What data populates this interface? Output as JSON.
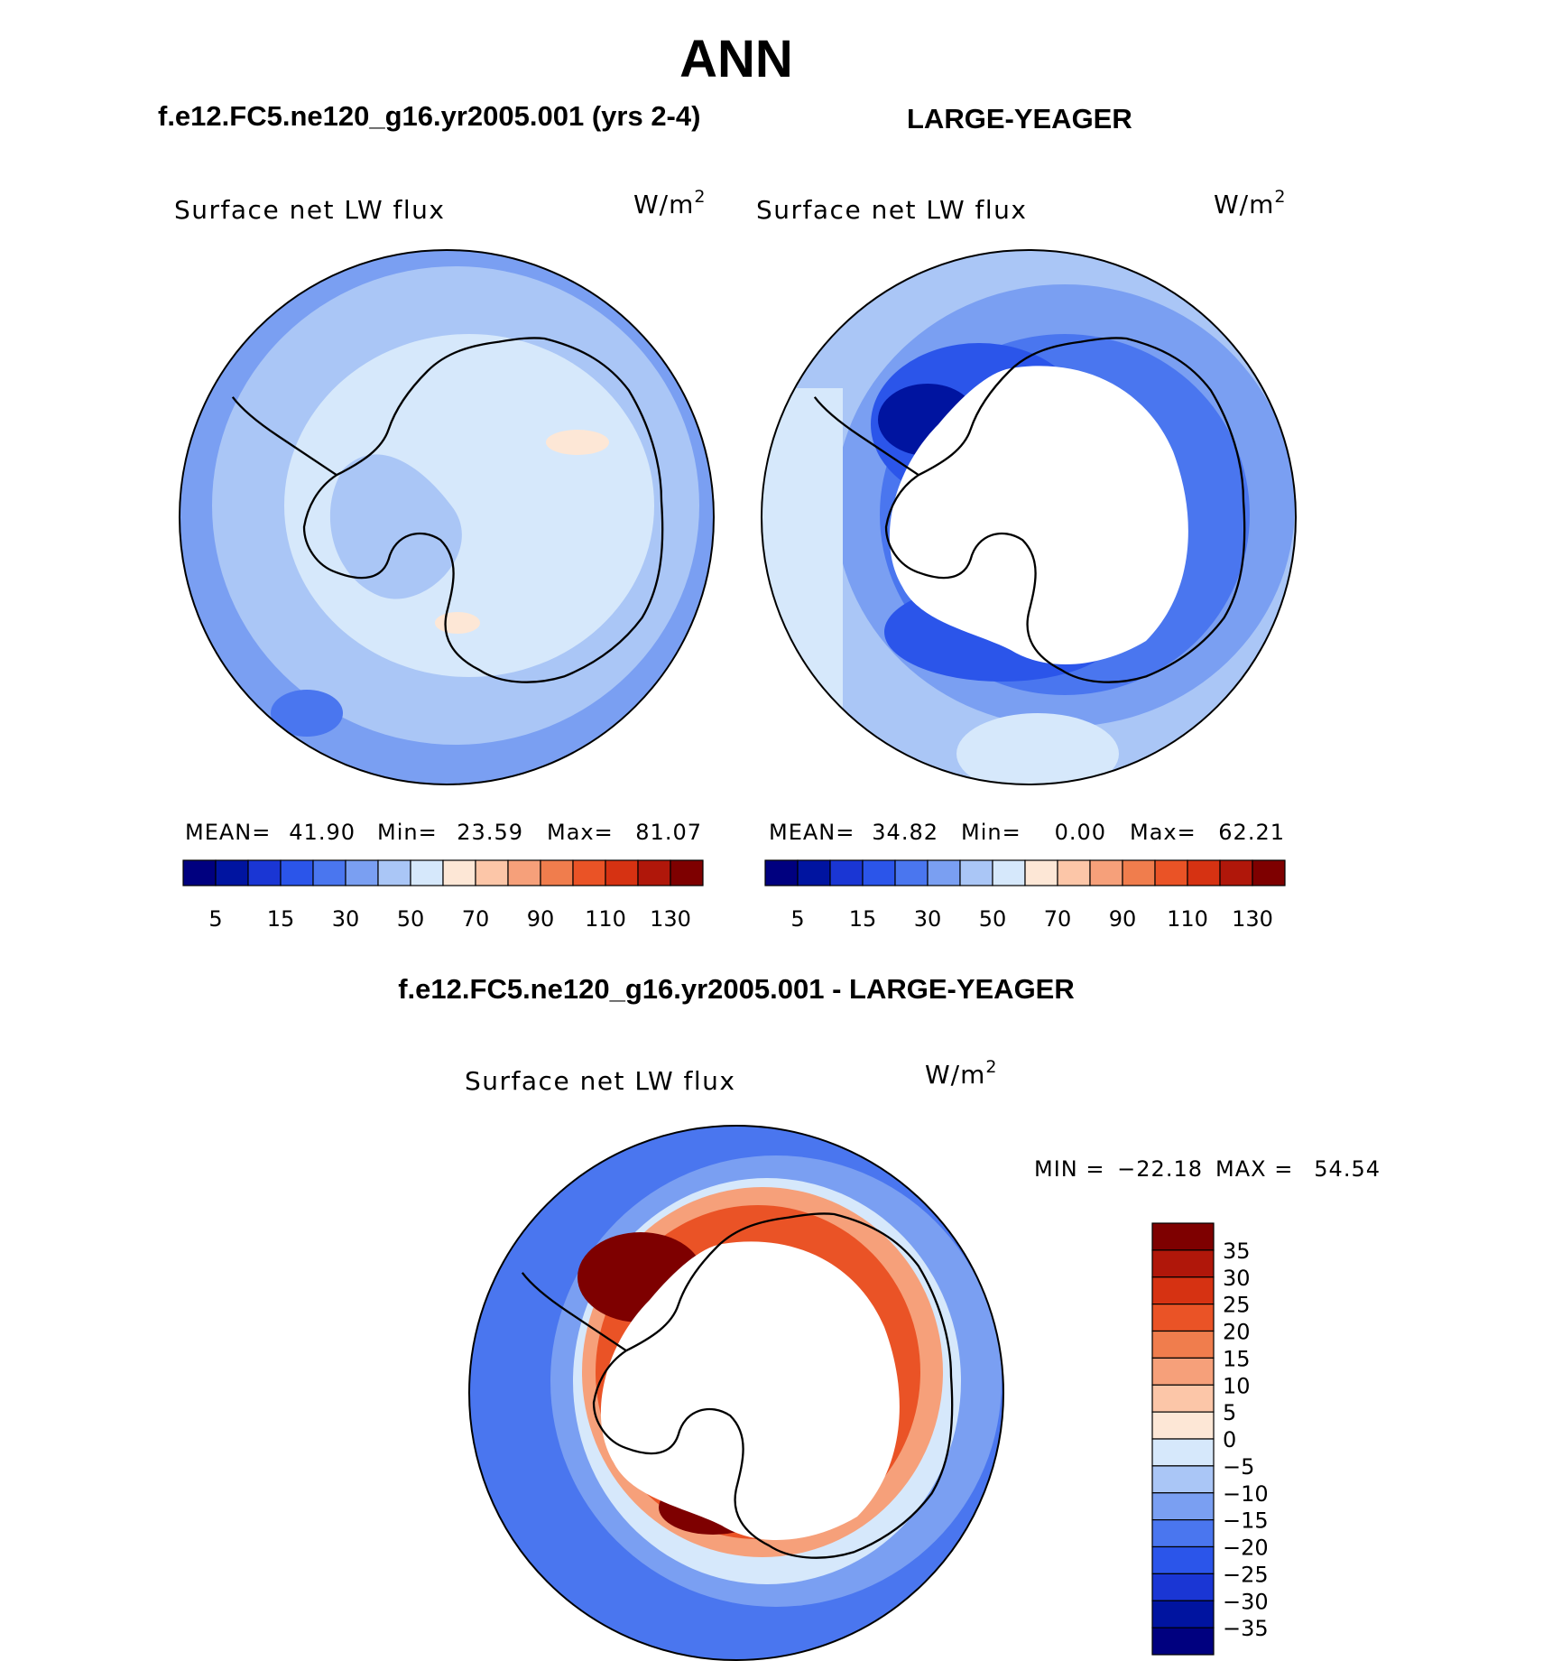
{
  "page": {
    "title": "ANN",
    "left_case": "f.e12.FC5.ne120_g16.yr2005.001 (yrs 2-4)",
    "right_case": "LARGE-YEAGER",
    "diff_title": "f.e12.FC5.ne120_g16.yr2005.001 - LARGE-YEAGER"
  },
  "panels": {
    "model": {
      "variable": "Surface net LW flux",
      "units_base": "W/m",
      "units_exp": "2",
      "stats": {
        "mean_label": "MEAN=",
        "mean": "41.90",
        "min_label": "Min=",
        "min": "23.59",
        "max_label": "Max=",
        "max": "81.07"
      }
    },
    "obs": {
      "variable": "Surface net LW flux",
      "units_base": "W/m",
      "units_exp": "2",
      "stats": {
        "mean_label": "MEAN=",
        "mean": "34.82",
        "min_label": "Min=",
        "min": "0.00",
        "max_label": "Max=",
        "max": "62.21"
      }
    },
    "diff": {
      "variable": "Surface net LW flux",
      "units_base": "W/m",
      "units_exp": "2",
      "stats": {
        "min_label": "MIN =",
        "min": "−22.18",
        "max_label": "MAX =",
        "max": "54.54"
      }
    }
  },
  "colorbars": {
    "abs": {
      "colors": [
        "#00007f",
        "#0014a0",
        "#1a36d4",
        "#2b55ea",
        "#4a76ef",
        "#7a9ff2",
        "#aac6f6",
        "#d6e8fb",
        "#fde7d6",
        "#fcc6a8",
        "#f6a07a",
        "#f07d4d",
        "#ea5326",
        "#d63212",
        "#b0170a",
        "#7e0000"
      ],
      "labels": [
        "5",
        "15",
        "30",
        "50",
        "70",
        "90",
        "110",
        "130"
      ]
    },
    "diff": {
      "colors": [
        "#7e0000",
        "#b0170a",
        "#d63212",
        "#ea5326",
        "#f07d4d",
        "#f6a07a",
        "#fcc6a8",
        "#fde7d6",
        "#d6e8fb",
        "#aac6f6",
        "#7a9ff2",
        "#4a76ef",
        "#2b55ea",
        "#1a36d4",
        "#0014a0",
        "#00007f"
      ],
      "labels": [
        "35",
        "30",
        "25",
        "20",
        "15",
        "10",
        "5",
        "0",
        "−5",
        "−10",
        "−15",
        "−20",
        "−25",
        "−30",
        "−35"
      ]
    }
  }
}
